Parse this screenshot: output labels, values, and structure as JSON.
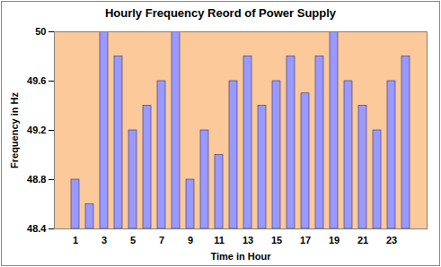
{
  "chart_data": {
    "type": "bar",
    "title": "Hourly Frequency Reord of Power Supply",
    "x_label": "Time in Hour",
    "y_label": "Frequency in Hz",
    "categories": [
      "1",
      null,
      "3",
      null,
      "5",
      null,
      "7",
      null,
      "9",
      null,
      "11",
      null,
      "13",
      null,
      "15",
      null,
      "17",
      null,
      "19",
      null,
      "21",
      null,
      "23",
      null
    ],
    "values": [
      48.8,
      48.6,
      50,
      49.8,
      49.2,
      49.4,
      49.6,
      50,
      48.8,
      49.2,
      49.0,
      49.6,
      49.8,
      49.4,
      49.6,
      49.8,
      49.5,
      49.8,
      50,
      49.6,
      49.4,
      49.2,
      49.6,
      49.8
    ],
    "color": "#9999ff",
    "ylim": [
      48.4,
      50
    ],
    "yticks": [
      48.4,
      48.8,
      49.2,
      49.6,
      50
    ],
    "grid": false
  }
}
